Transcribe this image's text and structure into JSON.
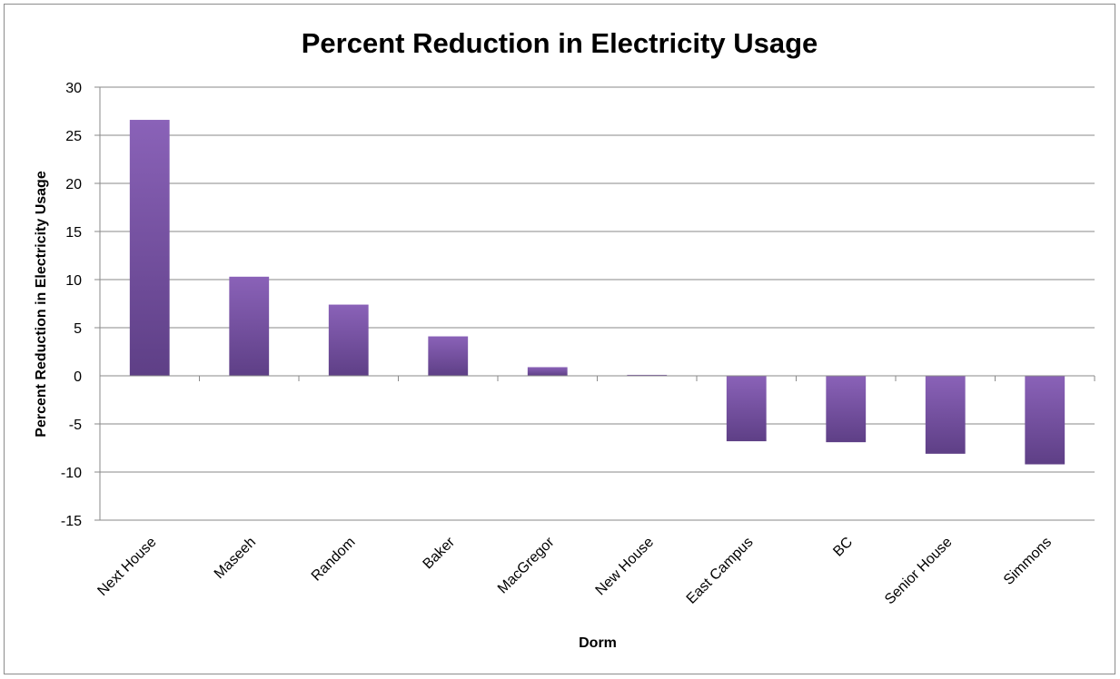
{
  "colors": {
    "bar_top": "#8a62b8",
    "bar_bottom": "#5e3f86",
    "gridline": "#8a8a8a",
    "frame": "#8c8c8c"
  },
  "chart_data": {
    "type": "bar",
    "title": "Percent Reduction in Electricity Usage",
    "xlabel": "Dorm",
    "ylabel": "Percent Reduction in Electricity Usage",
    "ylim": [
      -15,
      30
    ],
    "yticks": [
      30,
      25,
      20,
      15,
      10,
      5,
      0,
      -5,
      -10,
      -15
    ],
    "grid": true,
    "legend": "none",
    "categories": [
      "Next House",
      "Maseeh",
      "Random",
      "Baker",
      "MacGregor",
      "New House",
      "East Campus",
      "BC",
      "Senior House",
      "Simmons"
    ],
    "values": [
      26.6,
      10.3,
      7.4,
      4.1,
      0.9,
      0.1,
      -6.8,
      -6.9,
      -8.1,
      -9.2
    ]
  }
}
